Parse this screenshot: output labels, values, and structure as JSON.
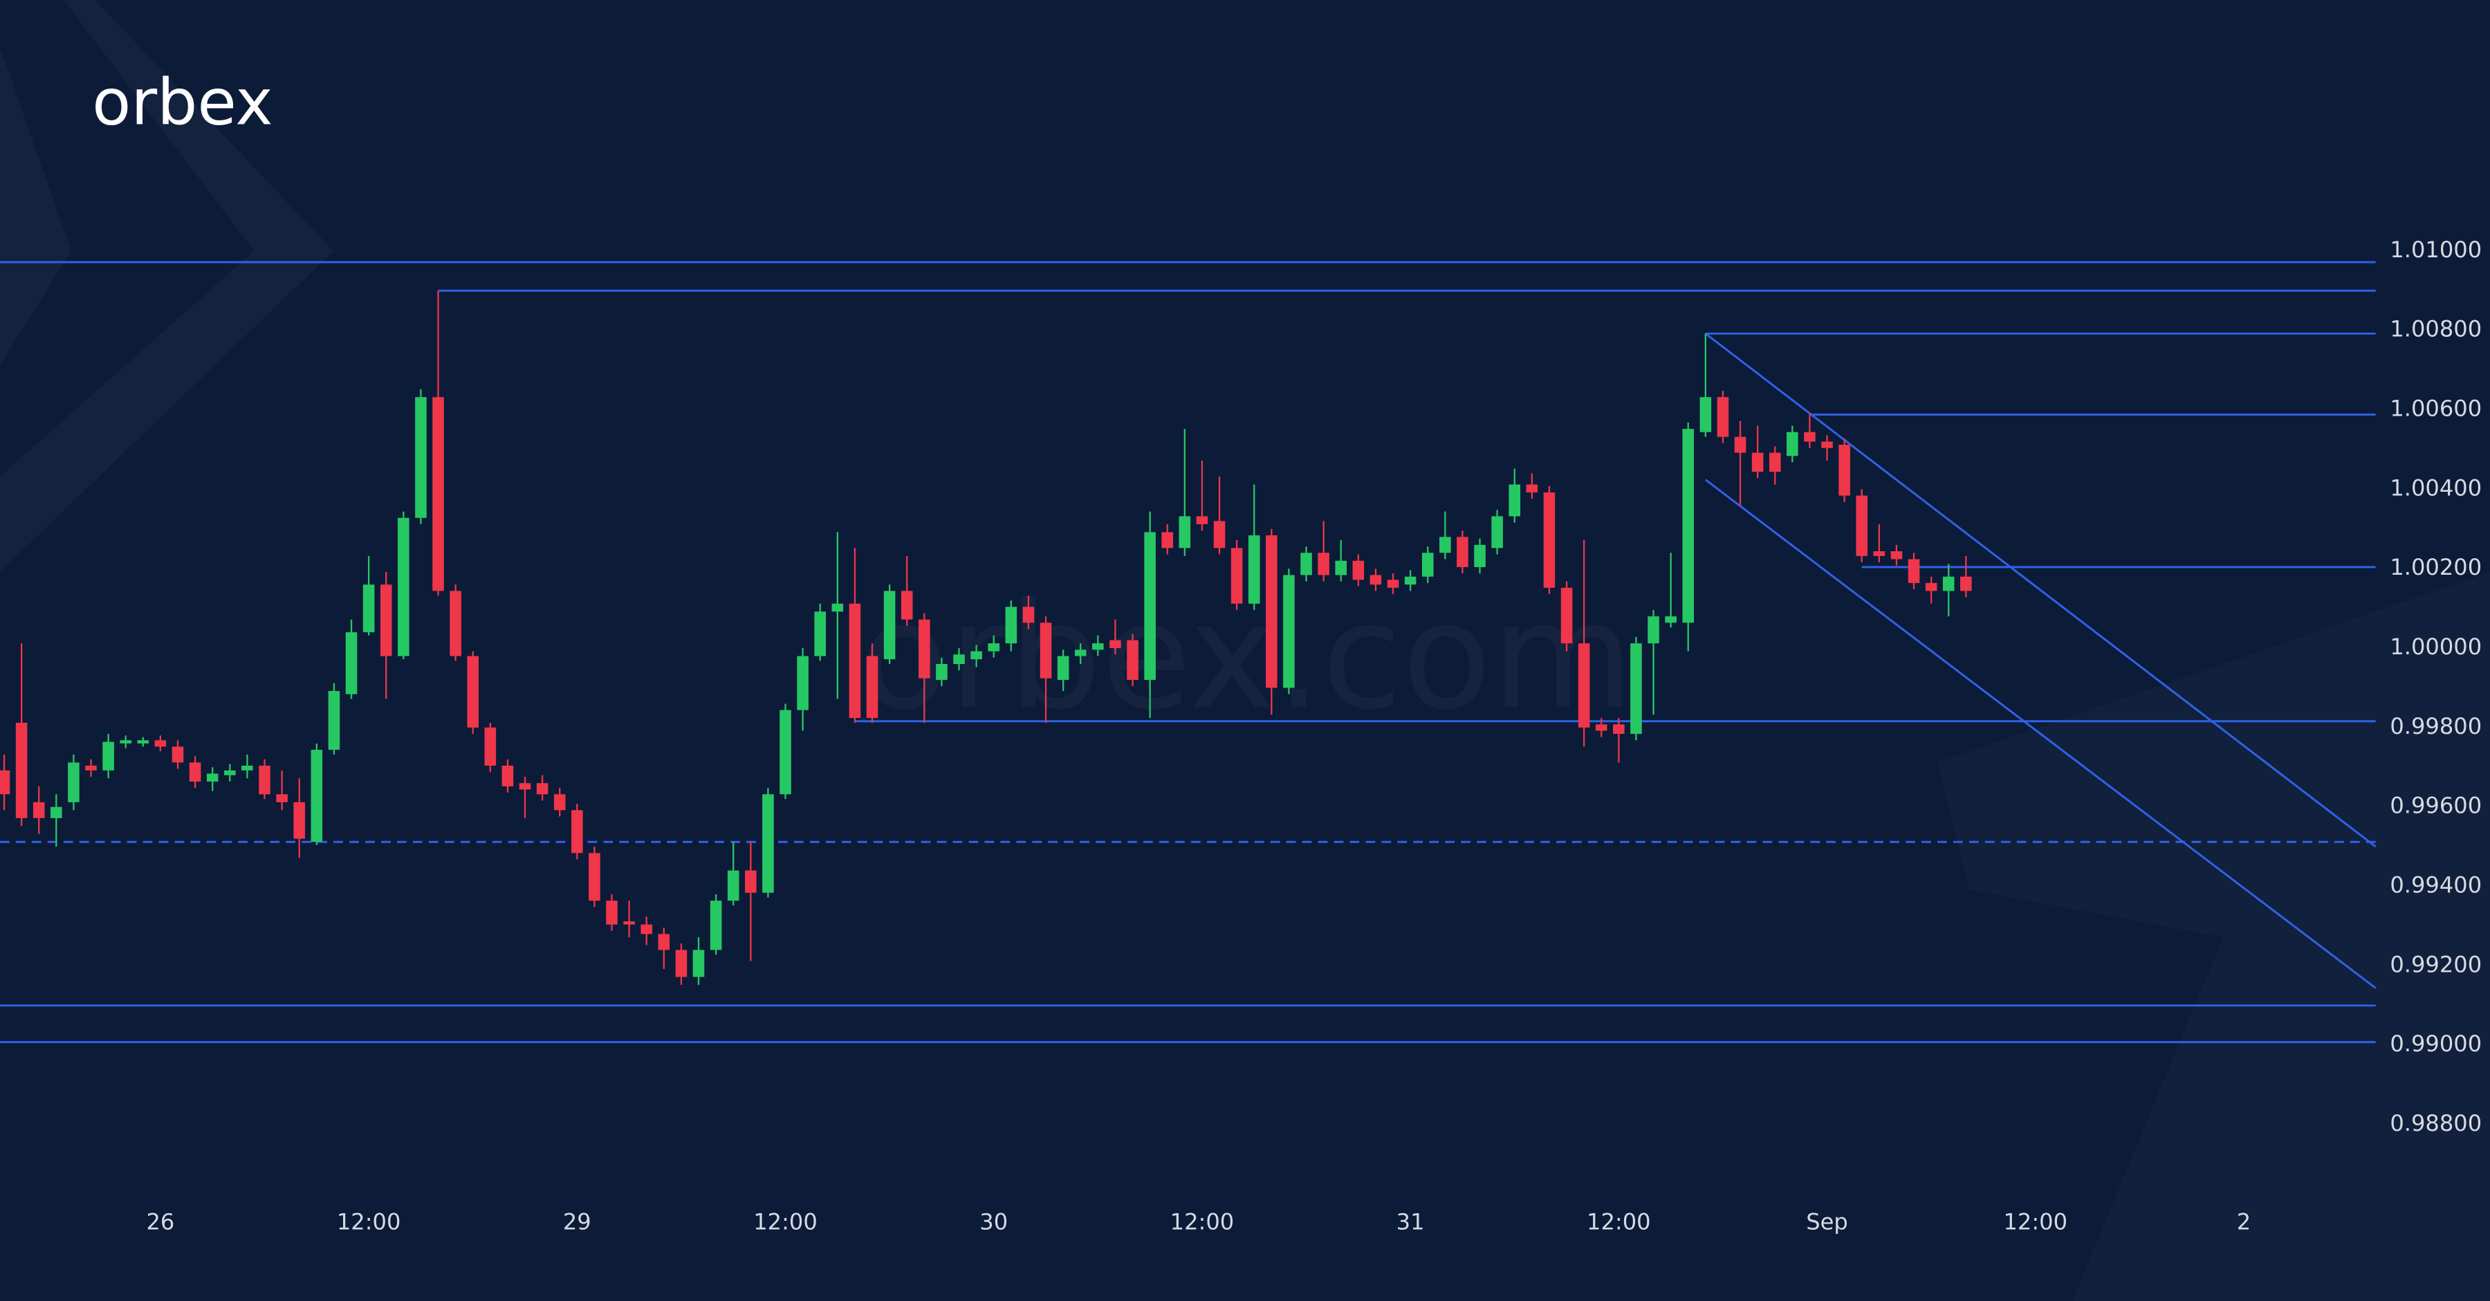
{
  "chart_data": {
    "type": "candlestick",
    "logo": "orbex",
    "watermark": "orbex.com",
    "background": "#0c1b38",
    "up_color": "#26c864",
    "down_color": "#f0364a",
    "line_color": "#2f62e6",
    "xlim": [
      -9.24,
      127.6
    ],
    "ylim": [
      0.98652,
      1.01632
    ],
    "xticks": [
      {
        "value": 0,
        "label": "26"
      },
      {
        "value": 12,
        "label": "12:00"
      },
      {
        "value": 24,
        "label": "29"
      },
      {
        "value": 36,
        "label": "12:00"
      },
      {
        "value": 48,
        "label": "30"
      },
      {
        "value": 60,
        "label": "12:00"
      },
      {
        "value": 72,
        "label": "31"
      },
      {
        "value": 84,
        "label": "12:00"
      },
      {
        "value": 96,
        "label": "Sep"
      },
      {
        "value": 108,
        "label": "12:00"
      },
      {
        "value": 120,
        "label": "2"
      }
    ],
    "yticks": [
      {
        "value": 1.01,
        "label": "1.01000"
      },
      {
        "value": 1.008,
        "label": "1.00800"
      },
      {
        "value": 1.006,
        "label": "1.00600"
      },
      {
        "value": 1.004,
        "label": "1.00400"
      },
      {
        "value": 1.002,
        "label": "1.00200"
      },
      {
        "value": 1.0,
        "label": "1.00000"
      },
      {
        "value": 0.998,
        "label": "0.99800"
      },
      {
        "value": 0.996,
        "label": "0.99600"
      },
      {
        "value": 0.994,
        "label": "0.99400"
      },
      {
        "value": 0.992,
        "label": "0.99200"
      },
      {
        "value": 0.99,
        "label": "0.99000"
      },
      {
        "value": 0.988,
        "label": "0.98800"
      }
    ],
    "x": [
      -9,
      -8,
      -7,
      -6,
      -5,
      -4,
      -3,
      -2,
      -1,
      0,
      1,
      2,
      3,
      4,
      5,
      6,
      7,
      8,
      9,
      10,
      11,
      12,
      13,
      14,
      15,
      16,
      17,
      18,
      19,
      20,
      21,
      22,
      23,
      24,
      25,
      26,
      27,
      28,
      29,
      30,
      31,
      32,
      33,
      34,
      35,
      36,
      37,
      38,
      39,
      40,
      41,
      42,
      43,
      44,
      45,
      46,
      47,
      48,
      49,
      50,
      51,
      52,
      53,
      54,
      55,
      56,
      57,
      58,
      59,
      60,
      61,
      62,
      63,
      64,
      65,
      66,
      67,
      68,
      69,
      70,
      71,
      72,
      73,
      74,
      75,
      76,
      77,
      78,
      79,
      80,
      81,
      82,
      83,
      84,
      85,
      86,
      87,
      88,
      89,
      90,
      91,
      92,
      93,
      94,
      95,
      96,
      97,
      98,
      99,
      100,
      101,
      102,
      103,
      104
    ],
    "open": [
      0.99692,
      0.99812,
      0.99612,
      0.99572,
      0.99612,
      0.99704,
      0.99692,
      0.9976,
      0.9976,
      0.99768,
      0.99752,
      0.99712,
      0.99664,
      0.9968,
      0.99692,
      0.99704,
      0.99632,
      0.99612,
      0.99512,
      0.99744,
      0.99884,
      1.0004,
      1.0016,
      0.9998,
      1.00328,
      1.00632,
      1.00144,
      0.9998,
      0.998,
      0.99704,
      0.9966,
      0.9966,
      0.99632,
      0.99592,
      0.99484,
      0.99364,
      0.99312,
      0.99304,
      0.9928,
      0.9924,
      0.99172,
      0.9924,
      0.99364,
      0.9944,
      0.99384,
      0.99632,
      0.99844,
      0.9998,
      1.00092,
      1.00112,
      0.9998,
      0.99972,
      1.00144,
      1.00072,
      0.9992,
      0.9996,
      0.99972,
      0.99992,
      1.00012,
      1.00104,
      1.00064,
      0.9992,
      0.9998,
      0.99996,
      1.0002,
      1.0002,
      0.9992,
      1.00292,
      1.00252,
      1.00332,
      1.0032,
      1.00252,
      1.00112,
      1.00284,
      0.999,
      1.00184,
      1.0024,
      1.00184,
      1.0022,
      1.00184,
      1.00172,
      1.0016,
      1.0018,
      1.0024,
      1.0028,
      1.00204,
      1.00252,
      1.00332,
      1.00412,
      1.00392,
      1.00152,
      1.00012,
      0.99808,
      0.99808,
      0.99784,
      1.00012,
      1.00064,
      1.00064,
      1.00544,
      1.00632,
      1.00532,
      1.00492,
      1.00492,
      1.00484,
      1.00544,
      1.0052,
      1.00512,
      1.00384,
      1.00244,
      1.00244,
      1.00224,
      1.00164,
      1.00144,
      1.0018
    ],
    "high": [
      0.99732,
      1.00012,
      0.99652,
      0.99632,
      0.99732,
      0.9972,
      0.99784,
      0.9978,
      0.99776,
      0.9978,
      0.99768,
      0.99728,
      0.997,
      0.99708,
      0.99732,
      0.9972,
      0.99692,
      0.99672,
      0.9976,
      0.99912,
      1.00072,
      1.00232,
      1.00192,
      1.00344,
      1.00652,
      1.009,
      1.0016,
      0.99992,
      0.99812,
      0.9972,
      0.99676,
      0.9968,
      0.99648,
      0.99608,
      0.995,
      0.9938,
      0.99364,
      0.99324,
      0.99296,
      0.99256,
      0.99272,
      0.9938,
      0.99512,
      0.99512,
      0.99648,
      0.9986,
      1.0,
      1.00112,
      1.00292,
      1.00252,
      1.00012,
      1.0016,
      1.00232,
      1.00088,
      0.99976,
      1.0,
      1.00008,
      1.00032,
      1.0012,
      1.00132,
      1.0008,
      0.99996,
      1.00012,
      1.00032,
      1.00072,
      1.00036,
      1.00344,
      1.00312,
      1.00552,
      1.00472,
      1.00432,
      1.00272,
      1.00412,
      1.003,
      1.002,
      1.00256,
      1.0032,
      1.00272,
      1.00236,
      1.002,
      1.00188,
      1.00196,
      1.00256,
      1.00344,
      1.00296,
      1.00276,
      1.00348,
      1.00452,
      1.0044,
      1.00408,
      1.00168,
      1.00272,
      0.99824,
      0.99824,
      1.00028,
      1.00096,
      1.0024,
      1.00568,
      1.00792,
      1.00648,
      1.00572,
      1.0056,
      1.00508,
      1.0056,
      1.00592,
      1.00536,
      1.00528,
      1.004,
      1.00312,
      1.0026,
      1.0024,
      1.0018,
      1.00212,
      1.00232
    ],
    "low": [
      0.99592,
      0.99552,
      0.99532,
      0.995,
      0.99592,
      0.99676,
      0.99672,
      0.99748,
      0.99752,
      0.9974,
      0.99696,
      0.99648,
      0.9964,
      0.99664,
      0.99672,
      0.9962,
      0.99592,
      0.99472,
      0.99504,
      0.99732,
      0.99872,
      1.00032,
      0.99872,
      0.99972,
      1.00312,
      1.00132,
      0.99968,
      0.99784,
      0.99688,
      0.99636,
      0.99572,
      0.99616,
      0.99576,
      0.99468,
      0.99348,
      0.99288,
      0.99272,
      0.99252,
      0.99192,
      0.99152,
      0.99152,
      0.99228,
      0.99352,
      0.99212,
      0.99372,
      0.9962,
      0.99792,
      0.99968,
      0.99872,
      0.99812,
      0.99812,
      0.9996,
      1.00056,
      0.99812,
      0.99904,
      0.99944,
      0.99952,
      0.99976,
      0.99992,
      1.00048,
      0.99812,
      0.99892,
      0.9996,
      0.9998,
      0.99984,
      0.99904,
      0.99824,
      1.00236,
      1.00232,
      1.00296,
      1.00236,
      1.00096,
      1.00096,
      0.99832,
      0.99884,
      1.00168,
      1.00168,
      1.00168,
      1.00156,
      1.00144,
      1.00136,
      1.00144,
      1.00164,
      1.00224,
      1.00188,
      1.00188,
      1.00236,
      1.00316,
      1.00376,
      1.00136,
      0.99992,
      0.99752,
      0.99776,
      0.99712,
      0.99768,
      0.99832,
      1.00052,
      0.99992,
      1.00532,
      1.00516,
      1.0036,
      1.00428,
      1.00412,
      1.00468,
      1.00504,
      1.00472,
      1.00368,
      1.00216,
      1.00216,
      1.00208,
      1.00148,
      1.00112,
      1.0008,
      1.00128
    ],
    "close": [
      0.99632,
      0.99572,
      0.99572,
      0.996,
      0.99712,
      0.99692,
      0.99764,
      0.99768,
      0.99768,
      0.99752,
      0.99712,
      0.99664,
      0.99684,
      0.99692,
      0.99704,
      0.99632,
      0.99612,
      0.9952,
      0.99744,
      0.99892,
      1.0004,
      1.0016,
      0.9998,
      1.00328,
      1.00632,
      1.00144,
      0.9998,
      0.998,
      0.99704,
      0.99652,
      0.99644,
      0.99632,
      0.99592,
      0.99484,
      0.99364,
      0.99304,
      0.99304,
      0.9928,
      0.9924,
      0.99172,
      0.9924,
      0.99364,
      0.9944,
      0.99384,
      0.99632,
      0.99844,
      0.9998,
      1.00092,
      1.00112,
      0.99824,
      0.99824,
      1.00144,
      1.00072,
      0.99924,
      0.9996,
      0.99984,
      0.99992,
      1.00012,
      1.00104,
      1.00064,
      0.99924,
      0.9998,
      0.99996,
      1.00012,
      1.0,
      0.9992,
      1.00292,
      1.00252,
      1.00332,
      1.00312,
      1.00252,
      1.00112,
      1.00284,
      0.999,
      1.00184,
      1.0024,
      1.00184,
      1.0022,
      1.00172,
      1.0016,
      1.00152,
      1.0018,
      1.0024,
      1.0028,
      1.00204,
      1.0026,
      1.00332,
      1.00412,
      1.00392,
      1.00152,
      1.00012,
      0.998,
      0.99792,
      0.99784,
      1.00012,
      1.0008,
      1.0008,
      1.00552,
      1.00632,
      1.00532,
      1.00492,
      1.00444,
      1.00444,
      1.00544,
      1.0052,
      1.00504,
      1.00384,
      1.00232,
      1.00232,
      1.00224,
      1.00164,
      1.00144,
      1.0018,
      1.00144
    ],
    "levels": [
      {
        "value": 1.00972
      },
      {
        "value": 1.009,
        "start": 16
      },
      {
        "value": 1.00792,
        "start": 89
      },
      {
        "value": 1.00588,
        "start": 95
      },
      {
        "value": 1.00204,
        "start": 98
      },
      {
        "value": 0.99816,
        "start": 40
      },
      {
        "value": 0.99512,
        "style": "dashed"
      },
      {
        "value": 0.991
      },
      {
        "value": 0.99008
      }
    ],
    "trendlines": [
      {
        "x": [
          89,
          127.6
        ],
        "y": [
          1.00792,
          0.995
        ]
      },
      {
        "x": [
          89,
          127.6
        ],
        "y": [
          1.00424,
          0.99144
        ]
      }
    ]
  }
}
